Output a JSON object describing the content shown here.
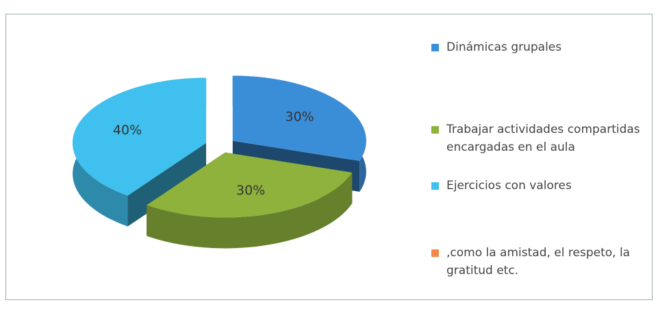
{
  "chart_data": {
    "type": "pie",
    "categories": [
      "Dinámicas grupales",
      "Trabajar actividades compartidas encargadas en el aula",
      "Ejercicios con valores",
      ",como la amistad, el respeto, la gratitud etc."
    ],
    "values": [
      30,
      30,
      40,
      0
    ],
    "value_labels": [
      "30%",
      "30%",
      "40%",
      null
    ],
    "colors": [
      "#3a8ed8",
      "#8fb23d",
      "#3fc0ee",
      "#f0894a"
    ],
    "exploded": true,
    "three_d": true,
    "legend": "right"
  }
}
